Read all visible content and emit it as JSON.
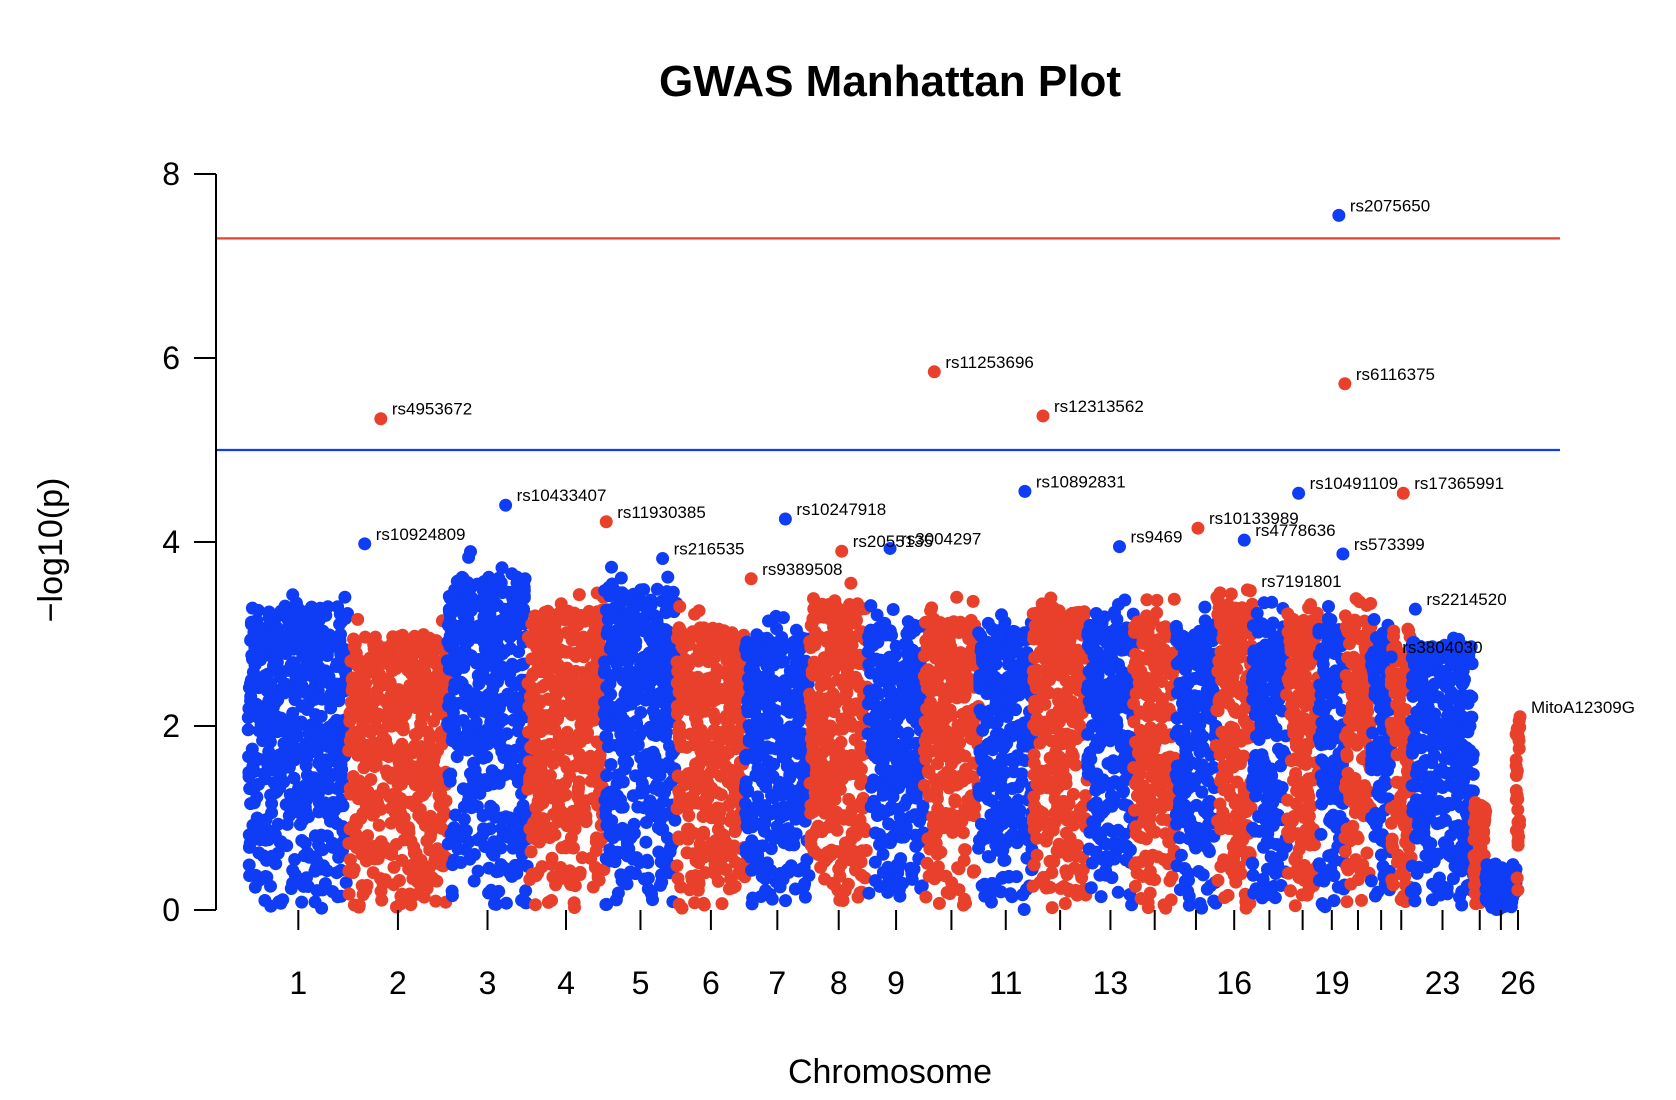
{
  "chart_data": {
    "type": "scatter",
    "title": "GWAS Manhattan Plot",
    "xlabel": "Chromosome",
    "ylabel": "−log10(p)",
    "ylim": [
      0,
      8
    ],
    "y_ticks": [
      0,
      2,
      4,
      6,
      8
    ],
    "grid": false,
    "legend": "none",
    "colors": {
      "odd": "#0f3cf5",
      "even": "#e8402a"
    },
    "thresholds": [
      {
        "value": 7.3,
        "color": "#e8402a"
      },
      {
        "value": 5.0,
        "color": "#0f3cf5"
      }
    ],
    "chromosomes": [
      {
        "chr": 1,
        "start": 0,
        "end": 250,
        "label": "1",
        "peak": 3.55
      },
      {
        "chr": 2,
        "start": 250,
        "end": 495,
        "label": "2",
        "peak": 3.2
      },
      {
        "chr": 3,
        "start": 495,
        "end": 695,
        "label": "3",
        "peak": 3.9
      },
      {
        "chr": 4,
        "start": 695,
        "end": 885,
        "label": "4",
        "peak": 3.5
      },
      {
        "chr": 5,
        "start": 885,
        "end": 1065,
        "label": "5",
        "peak": 3.75
      },
      {
        "chr": 6,
        "start": 1065,
        "end": 1235,
        "label": "6",
        "peak": 3.3
      },
      {
        "chr": 7,
        "start": 1235,
        "end": 1395,
        "label": "7",
        "peak": 3.2
      },
      {
        "chr": 8,
        "start": 1395,
        "end": 1540,
        "label": "8",
        "peak": 3.6
      },
      {
        "chr": 9,
        "start": 1540,
        "end": 1680,
        "label": "9",
        "peak": 3.35
      },
      {
        "chr": 10,
        "start": 1680,
        "end": 1815,
        "label": "",
        "peak": 3.4
      },
      {
        "chr": 11,
        "start": 1815,
        "end": 1950,
        "label": "11",
        "peak": 3.3
      },
      {
        "chr": 12,
        "start": 1950,
        "end": 2085,
        "label": "",
        "peak": 3.5
      },
      {
        "chr": 13,
        "start": 2085,
        "end": 2200,
        "label": "13",
        "peak": 3.45
      },
      {
        "chr": 14,
        "start": 2200,
        "end": 2305,
        "label": "",
        "peak": 3.4
      },
      {
        "chr": 15,
        "start": 2305,
        "end": 2405,
        "label": "",
        "peak": 3.3
      },
      {
        "chr": 16,
        "start": 2405,
        "end": 2495,
        "label": "16",
        "peak": 3.6
      },
      {
        "chr": 17,
        "start": 2495,
        "end": 2580,
        "label": "",
        "peak": 3.4
      },
      {
        "chr": 18,
        "start": 2580,
        "end": 2660,
        "label": "",
        "peak": 3.4
      },
      {
        "chr": 19,
        "start": 2660,
        "end": 2725,
        "label": "19",
        "peak": 3.3
      },
      {
        "chr": 20,
        "start": 2725,
        "end": 2790,
        "label": "",
        "peak": 3.4
      },
      {
        "chr": 21,
        "start": 2790,
        "end": 2840,
        "label": "",
        "peak": 3.2
      },
      {
        "chr": 22,
        "start": 2840,
        "end": 2890,
        "label": "",
        "peak": 3.1
      },
      {
        "chr": 23,
        "start": 2890,
        "end": 3045,
        "label": "23",
        "peak": 3.1
      },
      {
        "chr": 24,
        "start": 3045,
        "end": 3075,
        "label": "",
        "peak": 1.2
      },
      {
        "chr": 25,
        "start": 3075,
        "end": 3150,
        "label": "",
        "peak": 0.5
      },
      {
        "chr": 26,
        "start": 3150,
        "end": 3160,
        "label": "26",
        "peak": 2.1
      }
    ],
    "labeled_snps": [
      {
        "name": "rs2075650",
        "x": 2710,
        "y": 7.55,
        "chr": 19
      },
      {
        "name": "rs11253696",
        "x": 1705,
        "y": 5.85,
        "chr": 10
      },
      {
        "name": "rs6116375",
        "x": 2725,
        "y": 5.72,
        "chr": 20
      },
      {
        "name": "rs12313562",
        "x": 1975,
        "y": 5.37,
        "chr": 12
      },
      {
        "name": "rs4953672",
        "x": 330,
        "y": 5.34,
        "chr": 2
      },
      {
        "name": "rs10892831",
        "x": 1930,
        "y": 4.55,
        "chr": 11
      },
      {
        "name": "rs10491109",
        "x": 2610,
        "y": 4.53,
        "chr": 17
      },
      {
        "name": "rs17365991",
        "x": 2870,
        "y": 4.53,
        "chr": 22
      },
      {
        "name": "rs10433407",
        "x": 640,
        "y": 4.4,
        "chr": 3
      },
      {
        "name": "rs11930385",
        "x": 890,
        "y": 4.22,
        "chr": 4
      },
      {
        "name": "rs10247918",
        "x": 1335,
        "y": 4.25,
        "chr": 7
      },
      {
        "name": "rs10133989",
        "x": 2360,
        "y": 4.15,
        "chr": 14
      },
      {
        "name": "rs4778636",
        "x": 2475,
        "y": 4.02,
        "chr": 15
      },
      {
        "name": "rs10924809",
        "x": 290,
        "y": 3.98,
        "chr": 1
      },
      {
        "name": "rs9469",
        "x": 2165,
        "y": 3.95,
        "chr": 13
      },
      {
        "name": "rs2055135",
        "x": 1475,
        "y": 3.9,
        "chr": 8
      },
      {
        "name": "rs3004297",
        "x": 1595,
        "y": 3.93,
        "chr": 9
      },
      {
        "name": "rs573399",
        "x": 2720,
        "y": 3.87,
        "chr": 19
      },
      {
        "name": "rs216535",
        "x": 1030,
        "y": 3.82,
        "chr": 5
      },
      {
        "name": "rs7191801",
        "x": 2490,
        "y": 3.47,
        "chr": 16
      },
      {
        "name": "rs9389508",
        "x": 1250,
        "y": 3.6,
        "chr": 6
      },
      {
        "name": "rs2214520",
        "x": 2900,
        "y": 3.27,
        "chr": 23
      },
      {
        "name": "rs3804030",
        "x": 2840,
        "y": 2.75,
        "chr": 21
      },
      {
        "name": "MitoA12309G",
        "x": 3160,
        "y": 2.1,
        "chr": 26
      }
    ]
  }
}
